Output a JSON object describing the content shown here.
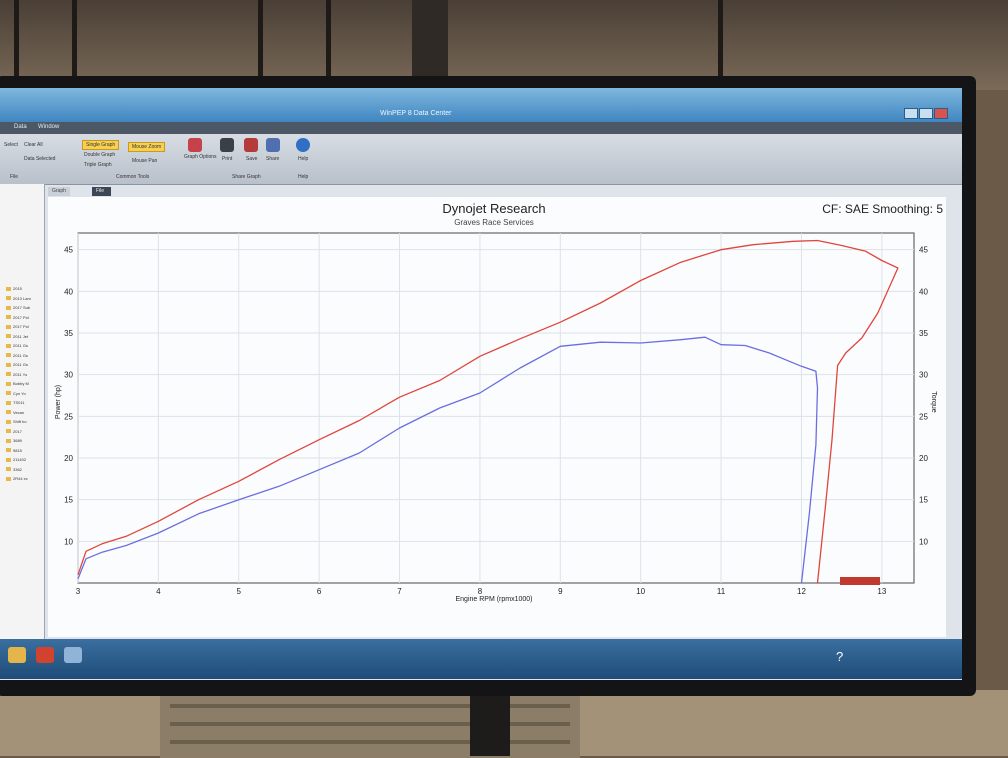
{
  "window": {
    "title": "WinPEP 8 Data Center",
    "menu": [
      "Data",
      "Window"
    ]
  },
  "ribbon": {
    "clear_all": "Clear All",
    "select": "Select",
    "data_selected": "Data Selected",
    "single_graph": "Single Graph",
    "double_graph": "Double Graph",
    "triple_graph": "Triple Graph",
    "mouse_zoom": "Mouse Zoom",
    "mouse_pan": "Mouse Pan",
    "graph_options": "Graph Options",
    "print": "Print",
    "save": "Save",
    "share": "Share",
    "help": "Help",
    "group_file": "File",
    "group_common_tools": "Common Tools",
    "group_share_graph": "Share Graph",
    "group_help": "Help"
  },
  "tabs": [
    "Graph View",
    "File View"
  ],
  "sidebar": {
    "items": [
      "2015",
      "2013 Lam",
      "2017 Sub",
      "2017 Pol",
      "2017 Pol",
      "2011 Jet",
      "2011 Gs",
      "2011 Gs",
      "2011 Gs",
      "2011 Yo",
      "Bobby M",
      "Cyn Yo",
      "TS011",
      "Vecan",
      "Shift bo",
      "2017",
      "3689",
      "9815",
      "211402",
      "3362",
      "2R44 xx"
    ]
  },
  "chart_data": {
    "type": "line",
    "title": "Dynojet Research",
    "subtitle": "Graves Race Services",
    "header_right": "CF: SAE Smoothing: 5",
    "xlabel": "Engine RPM (rpmx1000)",
    "ylabel": "Power (hp)",
    "y2label": "Torque",
    "xlim": [
      3,
      13.4
    ],
    "ylim": [
      5,
      47
    ],
    "y2lim": [
      5,
      47
    ],
    "x_ticks": [
      3,
      4,
      5,
      6,
      7,
      8,
      9,
      10,
      11,
      12,
      13
    ],
    "y_ticks": [
      10,
      15,
      20,
      25,
      30,
      35,
      40,
      45
    ],
    "y2_ticks": [
      10,
      15,
      20,
      25,
      30,
      35,
      40,
      45
    ],
    "grid": true,
    "legend": "none",
    "series": [
      {
        "color": "#e0463c",
        "points": [
          [
            3.0,
            6.0
          ],
          [
            3.1,
            8.8
          ],
          [
            3.3,
            9.7
          ],
          [
            3.6,
            10.6
          ],
          [
            4.0,
            12.4
          ],
          [
            4.5,
            15.0
          ],
          [
            5.0,
            17.2
          ],
          [
            5.5,
            19.8
          ],
          [
            6.0,
            22.2
          ],
          [
            6.5,
            24.5
          ],
          [
            7.0,
            27.3
          ],
          [
            7.5,
            29.3
          ],
          [
            8.0,
            32.2
          ],
          [
            8.5,
            34.3
          ],
          [
            9.0,
            36.3
          ],
          [
            9.5,
            38.6
          ],
          [
            10.0,
            41.3
          ],
          [
            10.5,
            43.5
          ],
          [
            11.0,
            45.0
          ],
          [
            11.4,
            45.6
          ],
          [
            11.9,
            46.0
          ],
          [
            12.2,
            46.1
          ],
          [
            12.5,
            45.5
          ],
          [
            12.8,
            44.8
          ],
          [
            13.0,
            43.7
          ],
          [
            13.2,
            42.8
          ],
          [
            12.95,
            37.4
          ],
          [
            12.75,
            34.4
          ],
          [
            12.55,
            32.6
          ],
          [
            12.45,
            31.1
          ],
          [
            12.38,
            22.2
          ],
          [
            12.3,
            14.4
          ],
          [
            12.2,
            5.0
          ]
        ]
      },
      {
        "color": "#6b6ee0",
        "points": [
          [
            3.0,
            5.5
          ],
          [
            3.1,
            7.9
          ],
          [
            3.3,
            8.7
          ],
          [
            3.6,
            9.5
          ],
          [
            4.0,
            11.0
          ],
          [
            4.5,
            13.3
          ],
          [
            5.0,
            15.0
          ],
          [
            5.5,
            16.6
          ],
          [
            6.0,
            18.6
          ],
          [
            6.5,
            20.6
          ],
          [
            7.0,
            23.6
          ],
          [
            7.5,
            26.0
          ],
          [
            8.0,
            27.8
          ],
          [
            8.5,
            30.8
          ],
          [
            9.0,
            33.4
          ],
          [
            9.5,
            33.9
          ],
          [
            10.0,
            33.8
          ],
          [
            10.5,
            34.2
          ],
          [
            10.8,
            34.5
          ],
          [
            11.0,
            33.6
          ],
          [
            11.3,
            33.5
          ],
          [
            11.6,
            32.6
          ],
          [
            11.8,
            31.8
          ],
          [
            12.0,
            31.0
          ],
          [
            12.18,
            30.4
          ],
          [
            12.2,
            28.4
          ],
          [
            12.18,
            21.6
          ],
          [
            12.1,
            13.5
          ],
          [
            12.0,
            5.0
          ]
        ]
      }
    ]
  }
}
